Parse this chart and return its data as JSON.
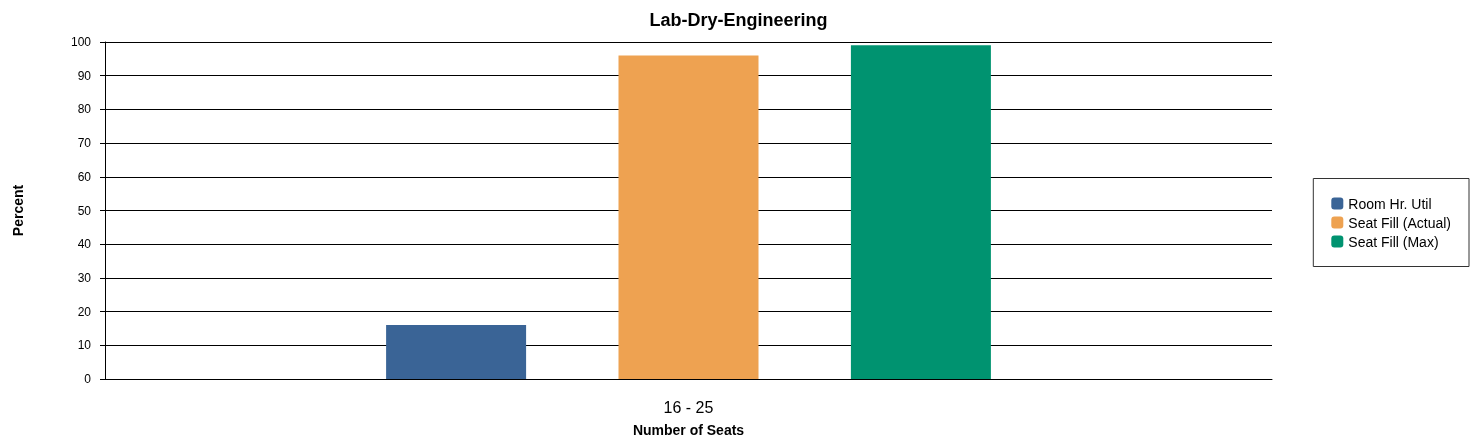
{
  "chart_data": {
    "type": "bar",
    "title": "Lab-Dry-Engineering",
    "xlabel": "Number of Seats",
    "ylabel": "Percent",
    "categories": [
      "16 - 25"
    ],
    "series": [
      {
        "name": "Room Hr. Util",
        "color": "#3a6496",
        "values": [
          16
        ]
      },
      {
        "name": "Seat Fill (Actual)",
        "color": "#eea251",
        "values": [
          96
        ]
      },
      {
        "name": "Seat Fill (Max)",
        "color": "#009370",
        "values": [
          99
        ]
      }
    ],
    "ylim": [
      0,
      100
    ],
    "yticks": [
      0,
      10,
      20,
      30,
      40,
      50,
      60,
      70,
      80,
      90,
      100
    ],
    "grid": "y",
    "legend": "right"
  }
}
